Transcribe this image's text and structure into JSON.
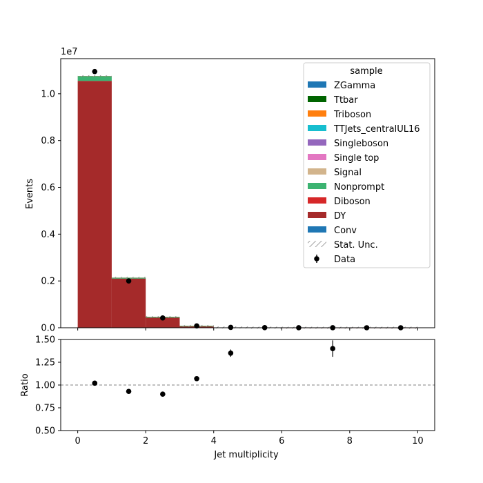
{
  "chart_data": {
    "type": "bar",
    "title": "",
    "xlabel": "Jet multiplicity",
    "ylabel": "Events",
    "ratio_ylabel": "Ratio",
    "yscale_label": "1e7",
    "xlim": [
      -0.5,
      10.5
    ],
    "ylim": [
      0,
      11.5
    ],
    "ratio_ylim": [
      0.5,
      1.5
    ],
    "xticks": [
      "0",
      "2",
      "4",
      "6",
      "8",
      "10"
    ],
    "yticks": [
      "0.0",
      "0.2",
      "0.4",
      "0.6",
      "0.8",
      "1.0"
    ],
    "ratio_yticks": [
      "0.50",
      "0.75",
      "1.00",
      "1.25",
      "1.50"
    ],
    "ratio_reference": 1.0,
    "bin_edges": [
      0,
      1,
      2,
      3,
      4,
      5,
      6,
      7,
      8,
      9,
      10
    ],
    "series": [
      {
        "name": "DY",
        "color": "#a52a2a",
        "values": [
          10.55,
          2.1,
          0.44,
          0.07,
          0.012,
          0.004,
          0.001,
          0.0005,
          0.0001,
          5e-05
        ]
      },
      {
        "name": "Nonprompt",
        "color": "#3cb371",
        "values": [
          0.18,
          0.02,
          0.008,
          0.002,
          0.0005,
          0.0002,
          0,
          0,
          0,
          0
        ]
      },
      {
        "name": "Ttbar",
        "color": "#006400",
        "values": [
          0.02,
          0.015,
          0.008,
          0.003,
          0.001,
          0.0003,
          0,
          0,
          0,
          0
        ]
      }
    ],
    "data": {
      "name": "Data",
      "x": [
        0.5,
        1.5,
        2.5,
        3.5,
        4.5,
        5.5,
        6.5,
        7.5,
        8.5,
        9.5
      ],
      "y": [
        10.95,
        2.0,
        0.42,
        0.08,
        0.016,
        0.005,
        0.001,
        0.0007,
        0.0001,
        5e-05
      ]
    },
    "ratio": {
      "x": [
        0.5,
        1.5,
        2.5,
        3.5,
        4.5,
        7.5
      ],
      "y": [
        1.02,
        0.93,
        0.9,
        1.07,
        1.35,
        1.4
      ],
      "yerr": [
        0.004,
        0.006,
        0.01,
        0.02,
        0.04,
        0.09
      ]
    },
    "legend": {
      "title": "sample",
      "position": "top-right",
      "entries": [
        {
          "label": "ZGamma",
          "color": "#1f77b4",
          "kind": "patch"
        },
        {
          "label": "Ttbar",
          "color": "#006400",
          "kind": "patch"
        },
        {
          "label": "Triboson",
          "color": "#ff7f0e",
          "kind": "patch"
        },
        {
          "label": "TTJets_centralUL16",
          "color": "#17becf",
          "kind": "patch"
        },
        {
          "label": "Singleboson",
          "color": "#9467bd",
          "kind": "patch"
        },
        {
          "label": "Single top",
          "color": "#e377c2",
          "kind": "patch"
        },
        {
          "label": "Signal",
          "color": "#d2b48c",
          "kind": "patch"
        },
        {
          "label": "Nonprompt",
          "color": "#3cb371",
          "kind": "patch"
        },
        {
          "label": "Diboson",
          "color": "#d62728",
          "kind": "patch"
        },
        {
          "label": "DY",
          "color": "#a52a2a",
          "kind": "patch"
        },
        {
          "label": "Conv",
          "color": "#1f77b4",
          "kind": "patch"
        },
        {
          "label": "Stat. Unc.",
          "color": "#888888",
          "kind": "hatch"
        },
        {
          "label": "Data",
          "color": "#000000",
          "kind": "errorbar"
        }
      ]
    }
  }
}
